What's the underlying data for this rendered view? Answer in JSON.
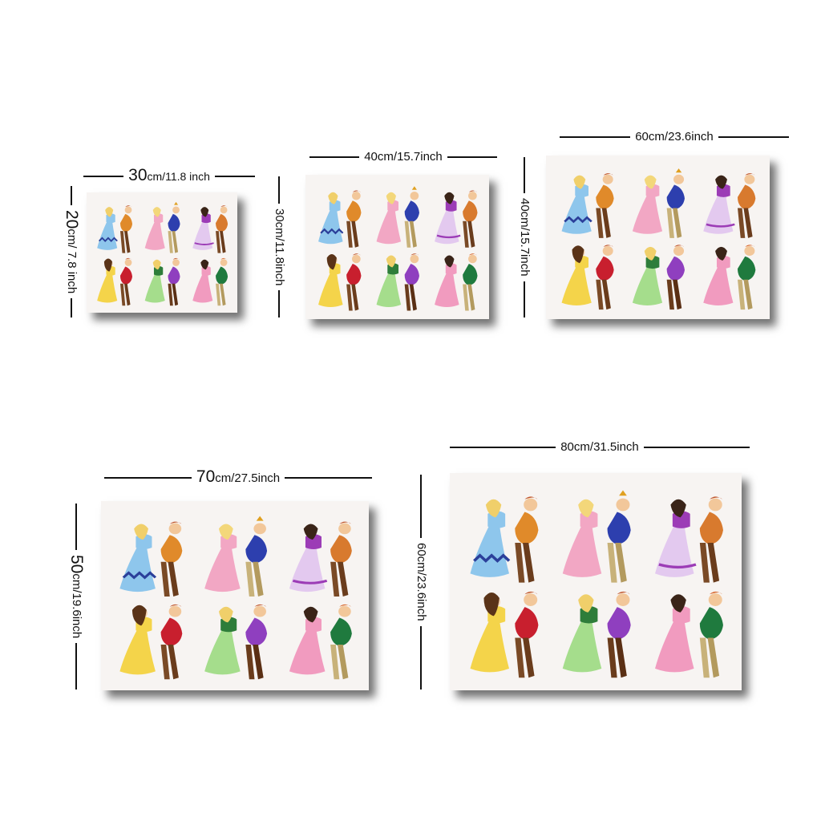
{
  "sizes": [
    {
      "width_label": "30",
      "width_unit": "cm/11.8 inch",
      "height_label": "20",
      "height_unit": "cm/ 7.8 inch"
    },
    {
      "width_label": "40cm/15.7inch",
      "height_label": "30cm/11.8inch"
    },
    {
      "width_label": "60cm/23.6inch",
      "height_label": "40cm/15.7inch"
    },
    {
      "width_label": "70",
      "width_unit": "cm/27.5inch",
      "height_label": "50",
      "height_unit": "cm/19.6inch"
    },
    {
      "width_label": "80cm/31.5inch",
      "height_label": "60cm/23.6inch"
    }
  ],
  "artwork": {
    "background": "#f7f4f2",
    "dress_colors": [
      "#8ec6ec",
      "#f2a7c4",
      "#d9b6e6",
      "#f4d44a",
      "#a5dd8c",
      "#f19bbf"
    ],
    "partner_colors": [
      "#e08a2a",
      "#2d3fae",
      "#9c3cb6",
      "#c81f2e",
      "#8f3fbf",
      "#1f7a3e"
    ]
  }
}
